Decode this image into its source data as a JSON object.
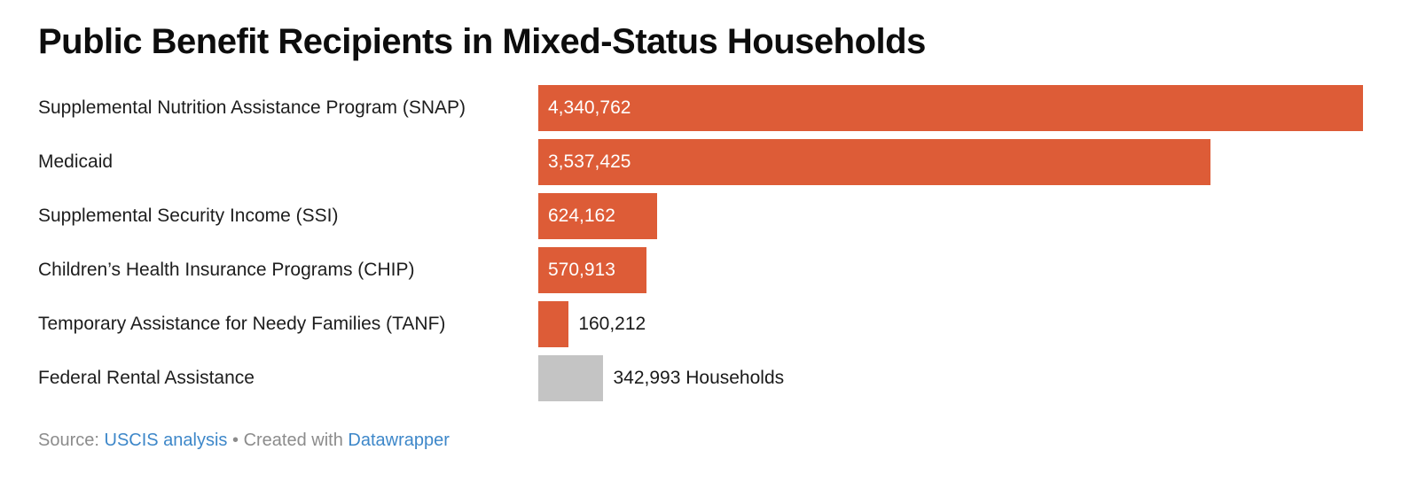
{
  "chart_data": {
    "type": "bar",
    "orientation": "horizontal",
    "title": "Public Benefit Recipients in Mixed-Status Households",
    "categories": [
      "Supplemental Nutrition Assistance Program (SNAP)",
      "Medicaid",
      "Supplemental Security Income (SSI)",
      "Children’s Health Insurance Programs (CHIP)",
      "Temporary Assistance for Needy Families (TANF)",
      "Federal Rental Assistance"
    ],
    "values": [
      4340762,
      3537425,
      624162,
      570913,
      160212,
      342993
    ],
    "value_labels": [
      "4,340,762",
      "3,537,425",
      "624,162",
      "570,913",
      "160,212",
      "342,993 Households"
    ],
    "bar_colors": [
      "#dd5c37",
      "#dd5c37",
      "#dd5c37",
      "#dd5c37",
      "#dd5c37",
      "#c4c4c4"
    ],
    "value_label_positions": [
      "inside",
      "inside",
      "inside",
      "inside",
      "outside",
      "outside"
    ],
    "xlabel": "",
    "ylabel": "",
    "xlim": [
      0,
      4340762
    ],
    "grid": false,
    "legend": false
  },
  "footer": {
    "source_prefix": "Source:",
    "source_link_label": "USCIS analysis",
    "separator": "•",
    "created_with_prefix": "Created with",
    "tool_link_label": "Datawrapper"
  },
  "colors": {
    "bar_orange": "#dd5c37",
    "bar_gray": "#c4c4c4",
    "link_blue": "#3d87c9",
    "footer_gray": "#8c8c8c",
    "title_black": "#0d0d0d",
    "label_dark": "#1d1d1d",
    "inside_value_white": "#ffffff"
  }
}
